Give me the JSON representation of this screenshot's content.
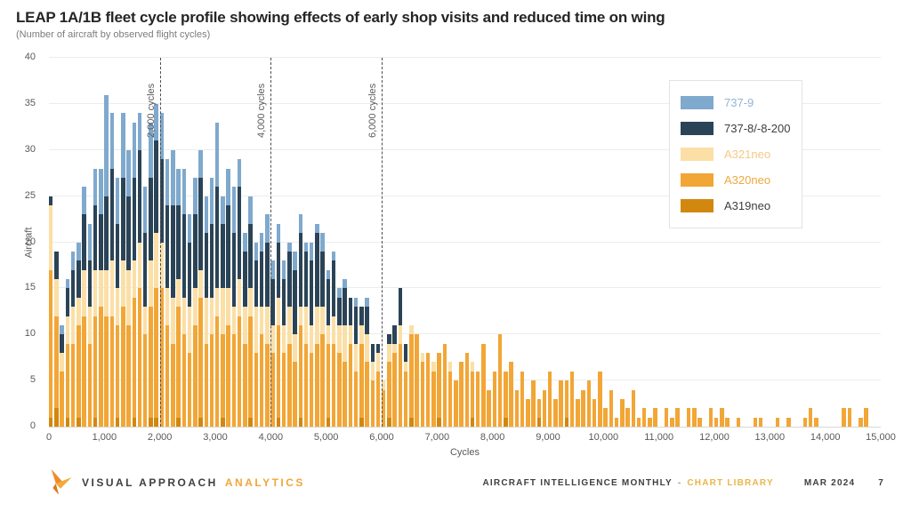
{
  "header": {
    "title": "LEAP 1A/1B fleet cycle profile showing effects of early shop visits and reduced time on wing",
    "subtitle": "(Number of aircraft  by observed flight cycles)"
  },
  "legend": {
    "items": [
      {
        "id": "b739",
        "label": "737-9",
        "swatch": "#7FA9CD",
        "label_color": "#92B5D4"
      },
      {
        "id": "b738",
        "label": "737-8/-8-200",
        "swatch": "#2B4356",
        "label_color": "#3E3E3E"
      },
      {
        "id": "a321",
        "label": "A321neo",
        "swatch": "#FBDFA6",
        "label_color": "#F5C886"
      },
      {
        "id": "a320",
        "label": "A320neo",
        "swatch": "#F2A636",
        "label_color": "#EFA83E"
      },
      {
        "id": "a319",
        "label": "A319neo",
        "swatch": "#D2870E",
        "label_color": "#3E3E3E"
      }
    ]
  },
  "chart_data": {
    "type": "bar",
    "stacked": true,
    "bin_size_cycles": 100,
    "xlim": [
      0,
      15000
    ],
    "ylim": [
      0,
      40
    ],
    "xlabel": "Cycles",
    "ylabel": "Aircraft",
    "grid": "horizontal",
    "legend_position": "top-right",
    "x_ticks": [
      "0",
      "1,000",
      "2,000",
      "3,000",
      "4,000",
      "5,000",
      "6,000",
      "7,000",
      "8,000",
      "9,000",
      "10,000",
      "11,000",
      "12,000",
      "13,000",
      "14,000",
      "15,000"
    ],
    "y_ticks": [
      "0",
      "5",
      "10",
      "15",
      "20",
      "25",
      "30",
      "35",
      "40"
    ],
    "reference_lines": [
      {
        "x": 2000,
        "label": "2,000 cycles"
      },
      {
        "x": 4000,
        "label": "4,000 cycles"
      },
      {
        "x": 6000,
        "label": "6,000 cycles"
      }
    ],
    "series": [
      {
        "id": "a319",
        "name": "A319neo",
        "color": "#D2870E",
        "values": [
          1,
          2,
          0,
          1,
          0,
          1,
          0,
          0,
          1,
          0,
          0,
          0,
          1,
          0,
          0,
          1,
          0,
          0,
          1,
          1,
          0,
          0,
          0,
          1,
          0,
          0,
          0,
          1,
          0,
          0,
          0,
          1,
          0,
          0,
          0,
          0,
          1,
          0,
          0,
          0,
          0,
          1,
          0,
          0,
          0,
          1,
          0,
          0,
          0,
          0,
          1,
          0,
          0,
          0,
          0,
          0,
          1,
          0,
          0,
          0,
          0,
          1,
          0,
          0,
          0,
          1,
          0,
          0,
          0,
          0,
          1,
          0,
          0,
          0,
          0,
          0,
          1,
          0,
          0,
          0,
          0,
          0,
          1,
          0,
          0,
          0,
          0,
          0,
          1,
          0,
          0,
          0,
          0,
          1,
          0,
          0,
          0,
          0,
          0,
          0,
          0,
          0,
          0,
          0,
          0,
          0,
          0,
          0,
          0,
          0,
          0,
          0,
          0,
          0,
          0,
          0,
          0,
          0,
          0,
          0,
          0,
          0,
          0,
          0,
          0,
          0,
          0,
          0,
          0,
          0,
          0,
          0,
          0,
          0,
          0,
          0,
          0,
          0,
          0,
          0,
          0,
          0,
          0,
          0,
          0,
          0,
          0,
          0,
          0,
          0
        ]
      },
      {
        "id": "a320",
        "name": "A320neo",
        "color": "#F2A636",
        "values": [
          16,
          10,
          6,
          8,
          9,
          10,
          12,
          9,
          11,
          13,
          12,
          12,
          10,
          13,
          11,
          13,
          15,
          10,
          12,
          14,
          15,
          11,
          9,
          12,
          10,
          8,
          11,
          13,
          9,
          10,
          12,
          9,
          11,
          10,
          12,
          9,
          11,
          8,
          10,
          9,
          8,
          10,
          8,
          9,
          7,
          10,
          9,
          8,
          9,
          10,
          8,
          9,
          8,
          7,
          9,
          6,
          8,
          7,
          5,
          6,
          4,
          6,
          8,
          9,
          6,
          9,
          10,
          7,
          8,
          6,
          7,
          9,
          6,
          5,
          7,
          8,
          5,
          6,
          9,
          4,
          6,
          10,
          5,
          7,
          4,
          6,
          3,
          5,
          2,
          4,
          6,
          3,
          5,
          4,
          6,
          3,
          4,
          5,
          3,
          6,
          2,
          4,
          1,
          3,
          2,
          4,
          1,
          2,
          1,
          2,
          0,
          2,
          1,
          2,
          0,
          2,
          2,
          1,
          0,
          2,
          1,
          2,
          1,
          0,
          1,
          0,
          0,
          1,
          1,
          0,
          0,
          1,
          0,
          1,
          0,
          0,
          1,
          2,
          1,
          0,
          0,
          0,
          0,
          2,
          2,
          0,
          1,
          2,
          0,
          0
        ]
      },
      {
        "id": "a321",
        "name": "A321neo",
        "color": "#FBDFA6",
        "values": [
          7,
          4,
          2,
          3,
          4,
          3,
          5,
          4,
          5,
          4,
          5,
          6,
          4,
          5,
          6,
          4,
          5,
          3,
          5,
          6,
          5,
          4,
          5,
          3,
          4,
          5,
          4,
          3,
          5,
          4,
          3,
          5,
          4,
          3,
          4,
          4,
          3,
          5,
          3,
          4,
          3,
          3,
          3,
          4,
          3,
          2,
          4,
          3,
          4,
          3,
          2,
          3,
          3,
          4,
          2,
          3,
          2,
          3,
          2,
          2,
          1,
          2,
          1,
          2,
          1,
          1,
          0,
          1,
          0,
          1,
          0,
          0,
          1,
          0,
          0,
          0,
          1,
          0,
          0,
          0,
          0,
          0,
          0,
          0,
          0,
          0,
          0,
          0,
          0,
          0,
          0,
          0,
          0,
          0,
          0,
          0,
          0,
          0,
          0,
          0,
          0,
          0,
          0,
          0,
          0,
          0,
          0,
          0,
          0,
          0,
          0,
          0,
          0,
          0,
          0,
          0,
          0,
          0,
          0,
          0,
          0,
          0,
          0,
          0,
          0,
          0,
          0,
          0,
          0,
          0,
          0,
          0,
          0,
          0,
          0,
          0,
          0,
          0,
          0,
          0,
          0,
          0,
          0,
          0,
          0,
          0,
          0,
          0,
          0,
          0
        ]
      },
      {
        "id": "b738",
        "name": "737-8/-8-200",
        "color": "#2B4356",
        "values": [
          1,
          3,
          2,
          3,
          4,
          4,
          6,
          5,
          7,
          6,
          8,
          10,
          7,
          9,
          8,
          9,
          10,
          8,
          9,
          10,
          9,
          9,
          10,
          8,
          9,
          7,
          8,
          10,
          7,
          8,
          11,
          7,
          9,
          8,
          10,
          6,
          7,
          5,
          6,
          7,
          5,
          6,
          5,
          6,
          7,
          8,
          6,
          7,
          8,
          6,
          5,
          6,
          3,
          4,
          3,
          4,
          2,
          3,
          2,
          1,
          0,
          1,
          2,
          4,
          2,
          0,
          0,
          0,
          0,
          0,
          0,
          0,
          0,
          0,
          0,
          0,
          0,
          0,
          0,
          0,
          0,
          0,
          0,
          0,
          0,
          0,
          0,
          0,
          0,
          0,
          0,
          0,
          0,
          0,
          0,
          0,
          0,
          0,
          0,
          0,
          0,
          0,
          0,
          0,
          0,
          0,
          0,
          0,
          0,
          0,
          0,
          0,
          0,
          0,
          0,
          0,
          0,
          0,
          0,
          0,
          0,
          0,
          0,
          0,
          0,
          0,
          0,
          0,
          0,
          0,
          0,
          0,
          0,
          0,
          0,
          0,
          0,
          0,
          0,
          0,
          0,
          0,
          0,
          0,
          0,
          0,
          0,
          0,
          0,
          0
        ]
      },
      {
        "id": "b739",
        "name": "737-9",
        "color": "#7FA9CD",
        "values": [
          0,
          0,
          1,
          1,
          2,
          2,
          3,
          4,
          4,
          5,
          11,
          6,
          5,
          7,
          5,
          6,
          4,
          5,
          6,
          4,
          5,
          5,
          6,
          4,
          5,
          3,
          4,
          3,
          4,
          5,
          7,
          3,
          4,
          5,
          3,
          2,
          3,
          2,
          2,
          3,
          2,
          2,
          2,
          1,
          2,
          2,
          1,
          2,
          1,
          2,
          1,
          1,
          1,
          1,
          0,
          1,
          0,
          1,
          0,
          0,
          0,
          0,
          0,
          0,
          0,
          0,
          0,
          0,
          0,
          0,
          0,
          0,
          0,
          0,
          0,
          0,
          0,
          0,
          0,
          0,
          0,
          0,
          0,
          0,
          0,
          0,
          0,
          0,
          0,
          0,
          0,
          0,
          0,
          0,
          0,
          0,
          0,
          0,
          0,
          0,
          0,
          0,
          0,
          0,
          0,
          0,
          0,
          0,
          0,
          0,
          0,
          0,
          0,
          0,
          0,
          0,
          0,
          0,
          0,
          0,
          0,
          0,
          0,
          0,
          0,
          0,
          0,
          0,
          0,
          0,
          0,
          0,
          0,
          0,
          0,
          0,
          0,
          0,
          0,
          0,
          0,
          0,
          0,
          0,
          0,
          0,
          0,
          0,
          0,
          0
        ]
      }
    ]
  },
  "footer": {
    "brand_name": "VISUAL APPROACH",
    "brand_suffix": "ANALYTICS",
    "publication": "AIRCRAFT INTELLIGENCE MONTHLY",
    "separator": "-",
    "library": "CHART LIBRARY",
    "date": "MAR 2024",
    "page": "7"
  }
}
